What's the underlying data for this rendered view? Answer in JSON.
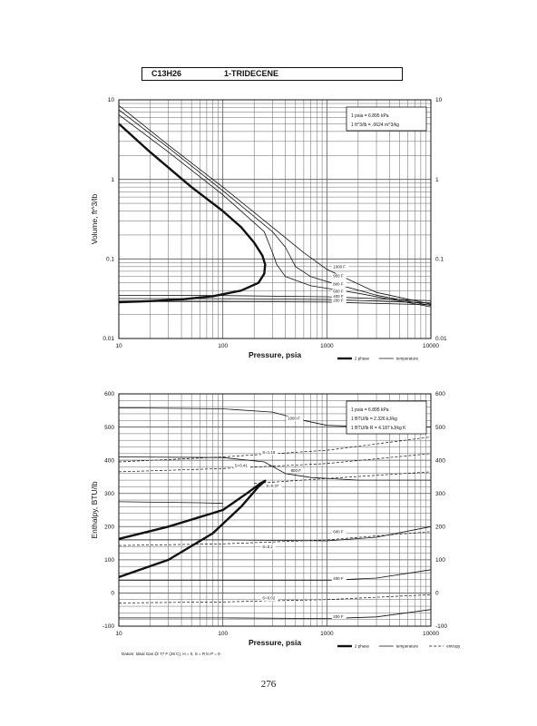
{
  "header": {
    "formula": "C13H26",
    "name": "1-TRIDECENE"
  },
  "page_number": "276",
  "footnote": "Datum: Ideal Gas @ 77 F (25 C), H = 0, S = R ln P = 0",
  "chart_data": [
    {
      "type": "line",
      "x_scale": "log",
      "y_scale": "log",
      "xlim": [
        10,
        10000
      ],
      "ylim": [
        0.01,
        10
      ],
      "xlabel": "Pressure,  psia",
      "ylabel": "Volume, ft^3/lb",
      "x_ticks": [
        {
          "v": 10,
          "label": "10"
        },
        {
          "v": 100,
          "label": "100"
        },
        {
          "v": 1000,
          "label": "1000"
        },
        {
          "v": 10000,
          "label": "10000"
        }
      ],
      "y_ticks": [
        {
          "v": 0.01,
          "label": "0.01"
        },
        {
          "v": 0.1,
          "label": "0.1"
        },
        {
          "v": 1,
          "label": "1"
        },
        {
          "v": 10,
          "label": "10"
        }
      ],
      "grid": true,
      "legend": {
        "placement": "bottom-right",
        "items": [
          {
            "label": "2 phase",
            "style": "thick"
          },
          {
            "label": "temperature",
            "style": "thin"
          }
        ]
      },
      "conversions": [
        "1 psia = 6.895 kPa",
        "1 ft^3/lb = .0624 m^3/kg"
      ],
      "series": [
        {
          "style": "thick",
          "points": [
            [
              10,
              5
            ],
            [
              20,
              2.2
            ],
            [
              50,
              0.8
            ],
            [
              100,
              0.4
            ],
            [
              150,
              0.25
            ],
            [
              200,
              0.16
            ],
            [
              240,
              0.11
            ],
            [
              255,
              0.085
            ],
            [
              250,
              0.065
            ],
            [
              220,
              0.05
            ],
            [
              150,
              0.04
            ],
            [
              80,
              0.034
            ],
            [
              40,
              0.031
            ],
            [
              20,
              0.0295
            ],
            [
              10,
              0.0285
            ]
          ]
        },
        {
          "label": "1000 F",
          "style": "thin",
          "points": [
            [
              10,
              8.5
            ],
            [
              30,
              2.7
            ],
            [
              100,
              0.8
            ],
            [
              300,
              0.25
            ],
            [
              600,
              0.12
            ],
            [
              1000,
              0.074
            ],
            [
              3000,
              0.038
            ],
            [
              10000,
              0.027
            ]
          ]
        },
        {
          "label": "900 F",
          "style": "thin",
          "points": [
            [
              10,
              7.5
            ],
            [
              30,
              2.5
            ],
            [
              100,
              0.72
            ],
            [
              300,
              0.22
            ],
            [
              400,
              0.14
            ],
            [
              500,
              0.08
            ],
            [
              700,
              0.06
            ],
            [
              1000,
              0.052
            ],
            [
              3000,
              0.035
            ],
            [
              10000,
              0.026
            ]
          ]
        },
        {
          "label": "800 F",
          "style": "thin",
          "points": [
            [
              10,
              6.5
            ],
            [
              30,
              2.2
            ],
            [
              100,
              0.64
            ],
            [
              250,
              0.22
            ],
            [
              300,
              0.12
            ],
            [
              330,
              0.085
            ],
            [
              400,
              0.06
            ],
            [
              700,
              0.046
            ],
            [
              2000,
              0.037
            ],
            [
              10000,
              0.025
            ]
          ]
        },
        {
          "label": "600 F",
          "style": "thin",
          "points": [
            [
              10,
              0.0348
            ],
            [
              100,
              0.0346
            ],
            [
              1000,
              0.0335
            ],
            [
              10000,
              0.0298
            ]
          ]
        },
        {
          "label": "400 F",
          "style": "thin",
          "points": [
            [
              10,
              0.0318
            ],
            [
              100,
              0.0317
            ],
            [
              1000,
              0.031
            ],
            [
              10000,
              0.028
            ]
          ]
        },
        {
          "label": "200 F",
          "style": "thin",
          "points": [
            [
              10,
              0.0292
            ],
            [
              100,
              0.0291
            ],
            [
              1000,
              0.0287
            ],
            [
              10000,
              0.0265
            ]
          ]
        }
      ],
      "annotations": [
        {
          "text": "1000 F",
          "x": 1150,
          "y": 0.077
        },
        {
          "text": "900 F",
          "x": 1150,
          "y": 0.059
        },
        {
          "text": "800 F",
          "x": 1150,
          "y": 0.0465
        },
        {
          "text": "600 F",
          "x": 1150,
          "y": 0.0375
        },
        {
          "text": "400 F",
          "x": 1150,
          "y": 0.0328
        },
        {
          "text": "200 F",
          "x": 1150,
          "y": 0.029
        }
      ]
    },
    {
      "type": "line",
      "x_scale": "log",
      "xlim": [
        10,
        10000
      ],
      "ylim": [
        -100,
        600
      ],
      "xlabel": "Pressure,  psia",
      "ylabel": "Enthalpy, BTU/lb",
      "x_ticks": [
        {
          "v": 10,
          "label": "10"
        },
        {
          "v": 100,
          "label": "100"
        },
        {
          "v": 1000,
          "label": "1000"
        },
        {
          "v": 10000,
          "label": "10000"
        }
      ],
      "y_ticks": [
        {
          "v": -100,
          "label": "-100"
        },
        {
          "v": 0,
          "label": "0"
        },
        {
          "v": 100,
          "label": "100"
        },
        {
          "v": 200,
          "label": "200"
        },
        {
          "v": 300,
          "label": "300"
        },
        {
          "v": 400,
          "label": "400"
        },
        {
          "v": 500,
          "label": "500"
        },
        {
          "v": 600,
          "label": "600"
        }
      ],
      "grid": true,
      "legend": {
        "placement": "bottom-right",
        "items": [
          {
            "label": "2 phase",
            "style": "thick"
          },
          {
            "label": "temperature",
            "style": "thin"
          },
          {
            "label": "entropy",
            "style": "dashed"
          }
        ]
      },
      "conversions": [
        "1 psia = 6.895 kPa",
        "1 BTU/lb = 2.326 kJ/kg",
        "1 BTU/lb R = 4.187 kJ/kg K"
      ],
      "series": [
        {
          "style": "thick",
          "points": [
            [
              10,
              163
            ],
            [
              30,
              200
            ],
            [
              100,
              250
            ],
            [
              170,
              300
            ],
            [
              230,
              330
            ],
            [
              255,
              338
            ],
            [
              220,
              320
            ],
            [
              150,
              260
            ],
            [
              80,
              180
            ],
            [
              30,
              100
            ],
            [
              10,
              48
            ]
          ]
        },
        {
          "label": "1000 F",
          "style": "thin",
          "points": [
            [
              10,
              558
            ],
            [
              100,
              555
            ],
            [
              300,
              545
            ],
            [
              600,
              520
            ],
            [
              1000,
              505
            ],
            [
              3000,
              500
            ],
            [
              10000,
              500
            ]
          ]
        },
        {
          "label": "800 F",
          "style": "thin",
          "points": [
            [
              10,
              410
            ],
            [
              100,
              408
            ],
            [
              250,
              395
            ],
            [
              400,
              360
            ],
            [
              700,
              348
            ],
            [
              2000,
              340
            ],
            [
              10000,
              340
            ]
          ]
        },
        {
          "style": "thin",
          "points": [
            [
              10,
              275
            ],
            [
              60,
              272
            ],
            [
              100,
              270
            ]
          ]
        },
        {
          "label": "600 F",
          "style": "thin",
          "points": [
            [
              10,
              160
            ],
            [
              100,
              160
            ],
            [
              1000,
              157
            ],
            [
              3000,
              168
            ],
            [
              10000,
              200
            ]
          ]
        },
        {
          "label": "400 F",
          "style": "thin",
          "points": [
            [
              10,
              38
            ],
            [
              100,
              38
            ],
            [
              1000,
              38
            ],
            [
              3000,
              45
            ],
            [
              10000,
              70
            ]
          ]
        },
        {
          "label": "200 F",
          "style": "thin",
          "points": [
            [
              10,
              -75
            ],
            [
              100,
              -75
            ],
            [
              1000,
              -77
            ],
            [
              3000,
              -72
            ],
            [
              10000,
              -50
            ]
          ]
        },
        {
          "label": "S=1.15",
          "style": "dashed",
          "points": [
            [
              10,
              395
            ],
            [
              100,
              410
            ],
            [
              1000,
              430
            ],
            [
              10000,
              470
            ]
          ]
        },
        {
          "label": "S=0.41",
          "style": "dashed",
          "points": [
            [
              10,
              365
            ],
            [
              100,
              375
            ],
            [
              1000,
              390
            ],
            [
              10000,
              420
            ]
          ]
        },
        {
          "label": "S=0.37",
          "style": "dashed",
          "points": [
            [
              200,
              330
            ],
            [
              1000,
              345
            ],
            [
              10000,
              365
            ]
          ]
        },
        {
          "label": "S=0.2",
          "style": "dashed",
          "points": [
            [
              10,
              143
            ],
            [
              100,
              148
            ],
            [
              1000,
              160
            ],
            [
              10000,
              185
            ]
          ]
        },
        {
          "label": "S=0.02",
          "style": "dashed",
          "points": [
            [
              10,
              -30
            ],
            [
              100,
              -27
            ],
            [
              1000,
              -20
            ],
            [
              10000,
              -5
            ]
          ]
        }
      ],
      "annotations": [
        {
          "text": "1000 F",
          "x": 420,
          "y": 522
        },
        {
          "text": "S=1.15",
          "x": 240,
          "y": 420
        },
        {
          "text": "S=0.41",
          "x": 130,
          "y": 380
        },
        {
          "text": "800 F",
          "x": 450,
          "y": 365
        },
        {
          "text": "S=0.37",
          "x": 260,
          "y": 318
        },
        {
          "text": "600 F",
          "x": 1150,
          "y": 180
        },
        {
          "text": "S=0.2",
          "x": 240,
          "y": 135
        },
        {
          "text": "400 F",
          "x": 1150,
          "y": 40
        },
        {
          "text": "S=0.02",
          "x": 240,
          "y": -20
        },
        {
          "text": "200 F",
          "x": 1150,
          "y": -75
        }
      ]
    }
  ]
}
